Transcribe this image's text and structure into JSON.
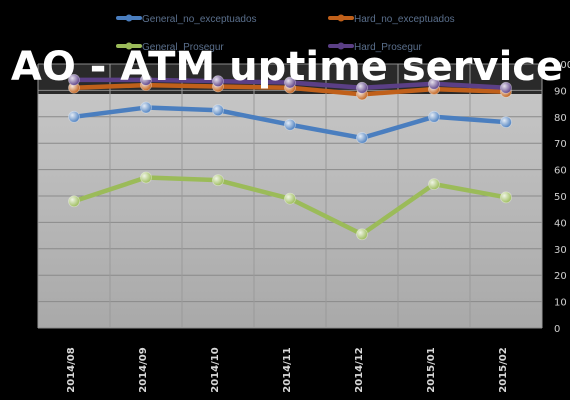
{
  "chart_data": {
    "type": "line",
    "title": "AO - ATM uptime service",
    "categories": [
      "2014/08",
      "2014/09",
      "2014/10",
      "2014/11",
      "2014/12",
      "2015/01",
      "2015/02"
    ],
    "ylim": [
      0,
      100
    ],
    "yticks": [
      0,
      10,
      20,
      30,
      40,
      50,
      60,
      70,
      80,
      90,
      100
    ],
    "ytick_labels": [
      "0",
      "10",
      "20",
      "30",
      "40",
      "50",
      "60",
      "70",
      "80",
      "90",
      "100"
    ],
    "grid": true,
    "legend_position": "top",
    "series": [
      {
        "name": "General_no_exceptuados",
        "color": "#4a7ebf",
        "values": [
          80,
          83.5,
          82.5,
          77,
          72,
          80,
          78
        ]
      },
      {
        "name": "Hard_no_exceptuados",
        "color": "#c0601a",
        "values": [
          91,
          92,
          91.5,
          91,
          88.5,
          90.5,
          89.5
        ]
      },
      {
        "name": "General_Prosegur",
        "color": "#9bbb59",
        "values": [
          48,
          57,
          56,
          49,
          35.5,
          54.5,
          49.5
        ]
      },
      {
        "name": "Hard_Prosegur",
        "color": "#5b3f86",
        "values": [
          94,
          94,
          93.5,
          93,
          91,
          92.5,
          91
        ]
      }
    ]
  }
}
